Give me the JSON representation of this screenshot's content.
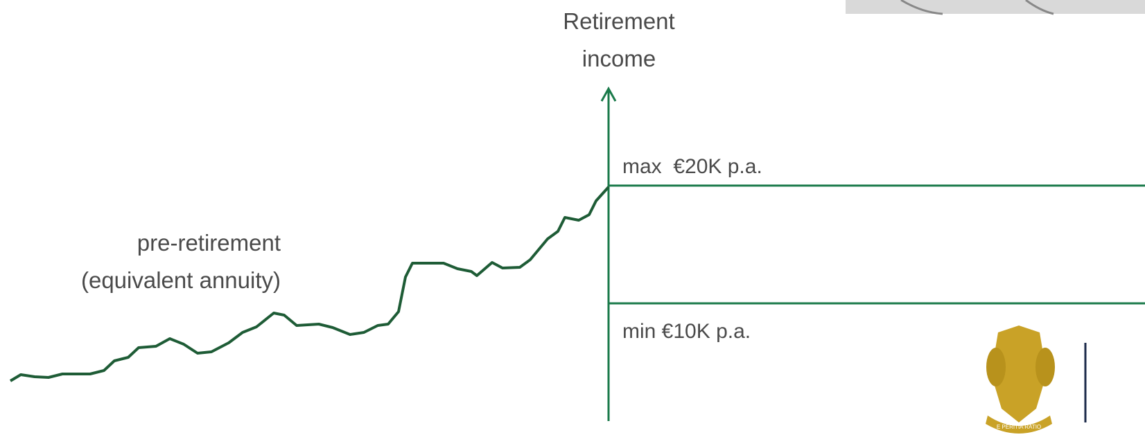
{
  "axis_label": {
    "line1": "Retirement",
    "line2": "income"
  },
  "pre_retirement_label": {
    "line1": "pre-retirement",
    "line2": "(equivalent annuity)"
  },
  "max_label": "max  €20K p.a.",
  "min_label": "min €10K p.a.",
  "logo": {
    "motto": "E PERITIA RATIO"
  }
}
